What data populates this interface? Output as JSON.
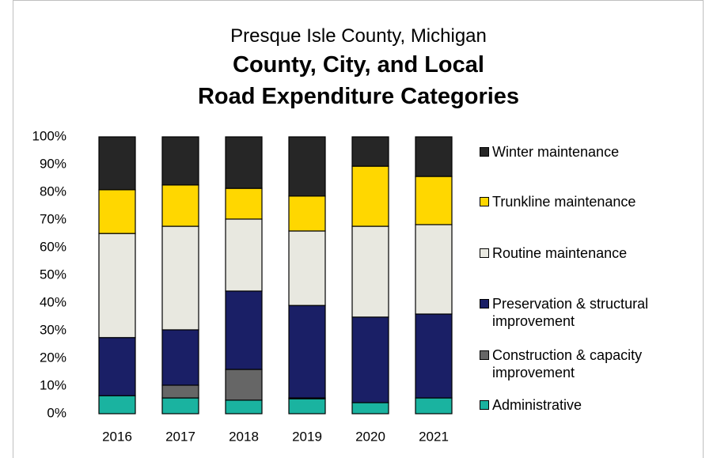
{
  "chart_data": {
    "type": "stacked_bar",
    "subtitle": "Presque Isle County, Michigan",
    "title": [
      "County, City, and Local",
      "Road Expenditure Categories"
    ],
    "categories": [
      "2016",
      "2017",
      "2018",
      "2019",
      "2020",
      "2021"
    ],
    "series": [
      {
        "name": "Administrative",
        "color": "#1ab3a0",
        "values": [
          6.5,
          5.7,
          4.9,
          5.4,
          4.0,
          5.7
        ]
      },
      {
        "name": "Construction & capacity improvement",
        "color": "#666666",
        "values": [
          0,
          4.6,
          11.1,
          0.3,
          0,
          0
        ]
      },
      {
        "name": "Preservation & structural improvement",
        "color": "#1a1f66",
        "values": [
          21,
          20,
          28.3,
          33.4,
          30.9,
          30.3
        ]
      },
      {
        "name": "Routine maintenance",
        "color": "#e8e8e0",
        "values": [
          37.6,
          37.4,
          26,
          26.9,
          32.8,
          32.3
        ]
      },
      {
        "name": "Trunkline maintenance",
        "color": "#ffd700",
        "values": [
          15.8,
          14.9,
          11.1,
          12.6,
          21.7,
          17.4
        ]
      },
      {
        "name": "Winter maintenance",
        "color": "#262626",
        "values": [
          19.1,
          17.4,
          18.6,
          21.4,
          10.6,
          14.3
        ]
      }
    ],
    "ylim": [
      0,
      100
    ],
    "yticks": [
      {
        "value": 0,
        "label": "0%"
      },
      {
        "value": 10,
        "label": "10%"
      },
      {
        "value": 20,
        "label": "20%"
      },
      {
        "value": 30,
        "label": "30%"
      },
      {
        "value": 40,
        "label": "40%"
      },
      {
        "value": 50,
        "label": "50%"
      },
      {
        "value": 60,
        "label": "60%"
      },
      {
        "value": 70,
        "label": "70%"
      },
      {
        "value": 80,
        "label": "80%"
      },
      {
        "value": 90,
        "label": "90%"
      },
      {
        "value": 100,
        "label": "100%"
      }
    ],
    "legend": "right"
  }
}
